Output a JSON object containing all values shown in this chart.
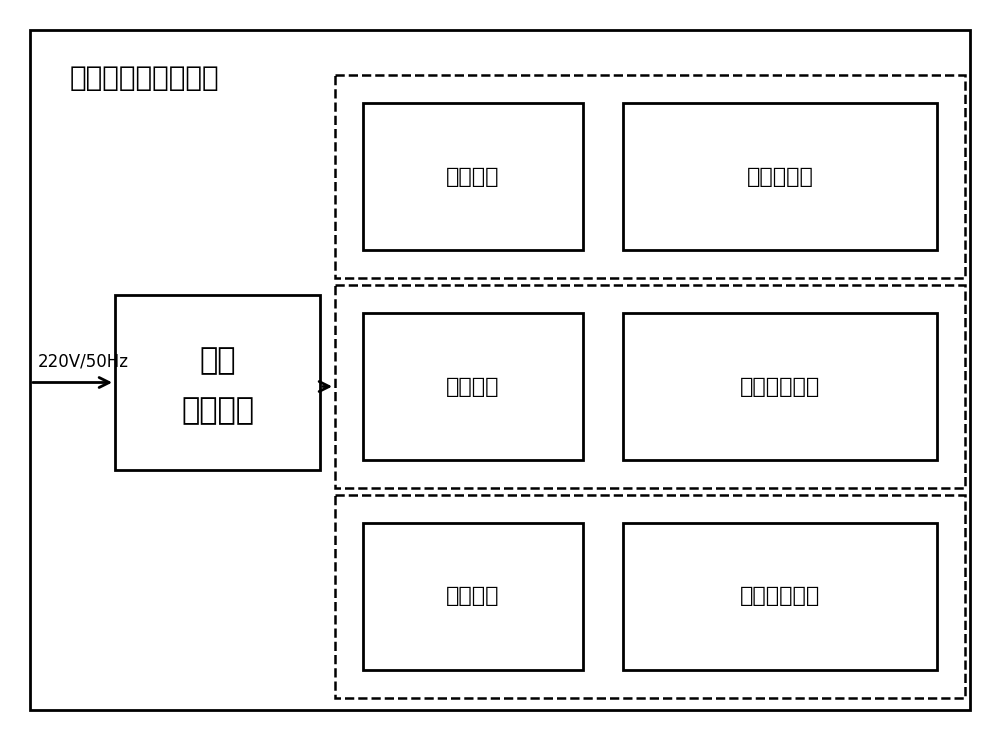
{
  "title": "堆外核仪表系统机柜",
  "input_label": "220V/50Hz",
  "main_box_label_1": "滤波",
  "main_box_label_2": "整流变压",
  "rows": [
    {
      "left_label": "稳压电路",
      "right_label": "源量程通道"
    },
    {
      "left_label": "稳压电路",
      "right_label": "中间量程通道"
    },
    {
      "left_label": "稳压电路",
      "right_label": "功率量程通道"
    }
  ],
  "bg_color": "#ffffff",
  "box_color": "#000000",
  "text_color": "#000000",
  "fontsize_title": 20,
  "fontsize_label": 16,
  "fontsize_input": 12,
  "lw_solid": 2.0,
  "lw_dashed": 1.8
}
